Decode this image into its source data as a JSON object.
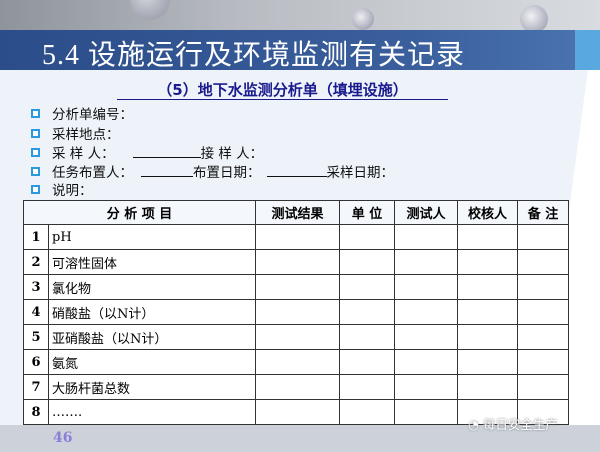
{
  "slide_title": "5.4  设施运行及环境监测有关记录",
  "subtitle": "（5）地下水监测分析单（填埋设施）",
  "fields": [
    {
      "label": "分析单编号："
    },
    {
      "label": "采样地点："
    },
    {
      "label": "采 样 人：",
      "label2": "接 样 人："
    },
    {
      "label": "任务布置人：",
      "label2": "布置日期：",
      "label3": "采样日期："
    },
    {
      "label": "说明："
    }
  ],
  "table": {
    "headers": [
      "分 析 项 目",
      "测试结果",
      "单 位",
      "测试人",
      "校核人",
      "备 注"
    ],
    "rows": [
      {
        "no": "1",
        "item": "pH"
      },
      {
        "no": "2",
        "item": "可溶性固体"
      },
      {
        "no": "3",
        "item": "氯化物"
      },
      {
        "no": "4",
        "item": "硝酸盐（以N计）"
      },
      {
        "no": "5",
        "item": "亚硝酸盐（以N计）"
      },
      {
        "no": "6",
        "item": "氨氮"
      },
      {
        "no": "7",
        "item": "大肠杆菌总数"
      },
      {
        "no": "8",
        "item": "……."
      }
    ]
  },
  "page_number": "46",
  "watermark": "每日安全生产",
  "colors": {
    "title_band": "#2b4d8a",
    "subtitle": "#1a1a8c",
    "bullet": "#2a9ae0",
    "page_number": "#8a7fd8"
  }
}
